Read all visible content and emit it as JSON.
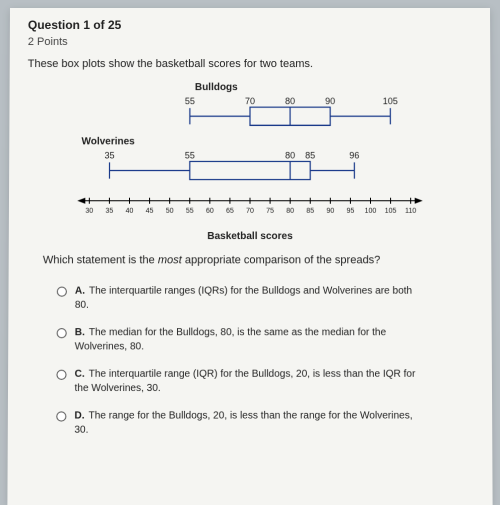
{
  "header": {
    "question_number": "Question 1 of 25",
    "points": "2 Points"
  },
  "prompt": "These box plots show the basketball scores for two teams.",
  "chart": {
    "type": "boxplot",
    "background_color": "#f5f5f2",
    "line_color": "#1a3a8a",
    "line_width": 1.2,
    "label_fontsize": 10,
    "value_fontsize": 9,
    "teams": [
      {
        "name": "Bulldogs",
        "min": 55,
        "q1": 70,
        "median": 80,
        "q3": 90,
        "max": 105
      },
      {
        "name": "Wolverines",
        "min": 35,
        "q1": 55,
        "median": 80,
        "q3": 85,
        "max": 96
      }
    ],
    "axis": {
      "xmin": 30,
      "xmax": 110,
      "xtick_step": 5,
      "title": "Basketball scores",
      "tick_fontsize": 7,
      "arrow_color": "#000000"
    }
  },
  "comparison_question": "Which statement is the most appropriate comparison of the spreads?",
  "answers": [
    {
      "letter": "A.",
      "text": "The interquartile ranges (IQRs) for the Bulldogs and Wolverines are both 80."
    },
    {
      "letter": "B.",
      "text": "The median for the Bulldogs, 80, is the same as the median for the Wolverines, 80."
    },
    {
      "letter": "C.",
      "text": "The interquartile range (IQR) for the Bulldogs, 20, is less than the IQR for the Wolverines, 30."
    },
    {
      "letter": "D.",
      "text": "The range for the Bulldogs, 20, is less than the range for the Wolverines, 30."
    }
  ]
}
